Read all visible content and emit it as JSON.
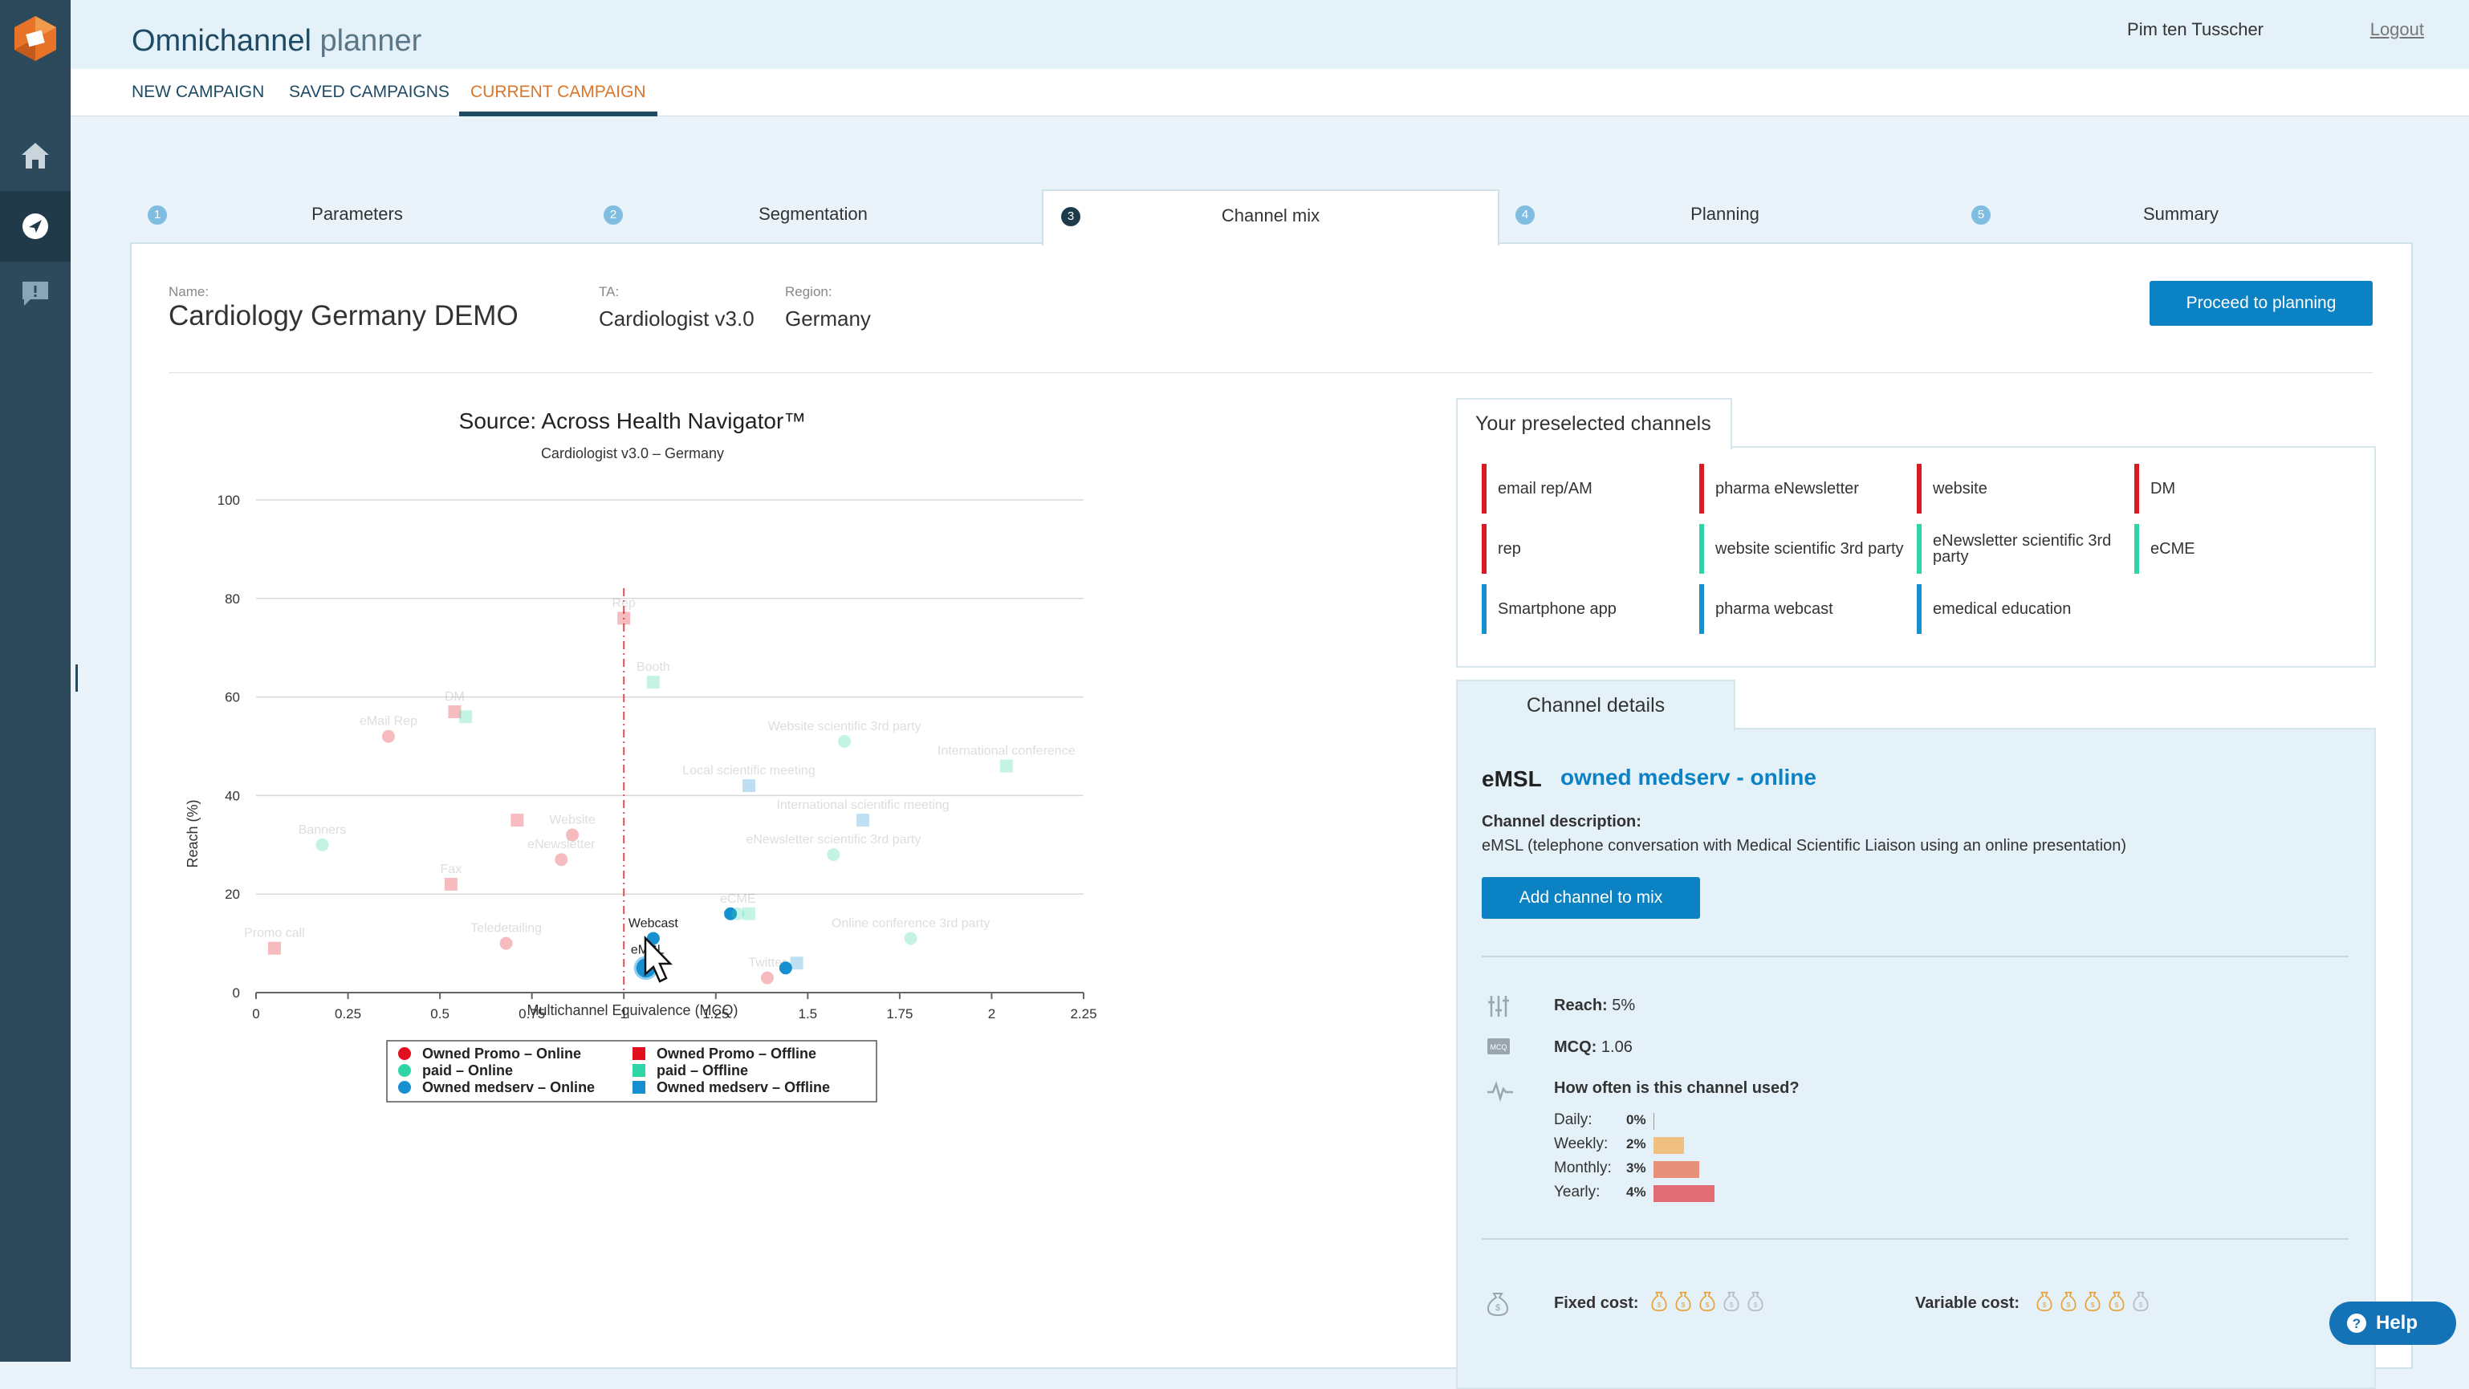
{
  "app": {
    "title_main": "Omnichannel",
    "title_thin": "planner"
  },
  "user": {
    "name": "Pim ten Tusscher",
    "logout": "Logout"
  },
  "nav": [
    {
      "label": "NEW CAMPAIGN",
      "active": false
    },
    {
      "label": "SAVED CAMPAIGNS",
      "active": false
    },
    {
      "label": "CURRENT CAMPAIGN",
      "active": true
    }
  ],
  "sidebar": {
    "items": [
      {
        "icon": "home-icon"
      },
      {
        "icon": "navigation-icon",
        "active": true
      },
      {
        "icon": "feedback-icon"
      }
    ]
  },
  "steps": [
    {
      "num": "1",
      "label": "Parameters"
    },
    {
      "num": "2",
      "label": "Segmentation"
    },
    {
      "num": "3",
      "label": "Channel mix",
      "active": true
    },
    {
      "num": "4",
      "label": "Planning"
    },
    {
      "num": "5",
      "label": "Summary"
    }
  ],
  "campaign": {
    "name_label": "Name:",
    "name": "Cardiology Germany DEMO",
    "ta_label": "TA:",
    "ta": "Cardiologist v3.0",
    "region_label": "Region:",
    "region": "Germany"
  },
  "proceed_label": "Proceed to planning",
  "chart_data": {
    "type": "scatter",
    "title": "Source: Across Health Navigator™",
    "subtitle": "Cardiologist v3.0 – Germany",
    "xlabel": "Multichannel Equivalence (MCQ)",
    "ylabel": "Reach (%)",
    "xlim": [
      0,
      2.25
    ],
    "ylim": [
      0,
      100
    ],
    "xticks": [
      "0",
      "0.25",
      "0.5",
      "0.75",
      "1",
      "1.25",
      "1.5",
      "1.75",
      "2",
      "2.25"
    ],
    "yticks": [
      "0",
      "20",
      "40",
      "60",
      "80",
      "100"
    ],
    "reference_line_x": 1,
    "colors": {
      "promo": "#e0101e",
      "paid": "#2ed6a6",
      "medserv": "#1790cf"
    },
    "legend": [
      {
        "label": "Owned Promo – Online",
        "group": "promo",
        "shape": "circle"
      },
      {
        "label": "Owned Promo – Offline",
        "group": "promo",
        "shape": "square"
      },
      {
        "label": "paid – Online",
        "group": "paid",
        "shape": "circle"
      },
      {
        "label": "paid – Offline",
        "group": "paid",
        "shape": "square"
      },
      {
        "label": "Owned medserv – Online",
        "group": "medserv",
        "shape": "circle"
      },
      {
        "label": "Owned medserv – Offline",
        "group": "medserv",
        "shape": "square"
      }
    ],
    "points": [
      {
        "x": 0.05,
        "y": 9,
        "group": "promo",
        "shape": "square",
        "label": "Promo call",
        "highlight": false
      },
      {
        "x": 0.18,
        "y": 30,
        "group": "paid",
        "shape": "circle",
        "label": "Banners",
        "highlight": false
      },
      {
        "x": 0.36,
        "y": 52,
        "group": "promo",
        "shape": "circle",
        "label": "eMail Rep",
        "highlight": false
      },
      {
        "x": 0.54,
        "y": 57,
        "group": "promo",
        "shape": "square",
        "label": "DM",
        "highlight": false
      },
      {
        "x": 0.57,
        "y": 56,
        "group": "paid",
        "shape": "square",
        "label": "",
        "highlight": false
      },
      {
        "x": 0.53,
        "y": 22,
        "group": "promo",
        "shape": "square",
        "label": "Fax",
        "highlight": false
      },
      {
        "x": 0.68,
        "y": 10,
        "group": "promo",
        "shape": "circle",
        "label": "Teledetailing",
        "highlight": false
      },
      {
        "x": 0.71,
        "y": 35,
        "group": "promo",
        "shape": "square",
        "label": "",
        "highlight": false
      },
      {
        "x": 0.86,
        "y": 32,
        "group": "promo",
        "shape": "circle",
        "label": "Website",
        "highlight": false
      },
      {
        "x": 0.83,
        "y": 27,
        "group": "promo",
        "shape": "circle",
        "label": "eNewsletter",
        "highlight": false
      },
      {
        "x": 1.0,
        "y": 76,
        "group": "promo",
        "shape": "square",
        "label": "Rep",
        "highlight": false
      },
      {
        "x": 1.08,
        "y": 63,
        "group": "paid",
        "shape": "square",
        "label": "Booth",
        "highlight": false
      },
      {
        "x": 1.08,
        "y": 11,
        "group": "medserv",
        "shape": "circle",
        "label": "Webcast",
        "highlight": true
      },
      {
        "x": 1.06,
        "y": 5,
        "group": "medserv",
        "shape": "circle",
        "label": "eMSL",
        "highlight": true,
        "selected": true
      },
      {
        "x": 1.29,
        "y": 16,
        "group": "medserv",
        "shape": "circle",
        "label": "",
        "highlight": true
      },
      {
        "x": 1.31,
        "y": 16,
        "group": "paid",
        "shape": "circle",
        "label": "eCME",
        "highlight": false
      },
      {
        "x": 1.34,
        "y": 16,
        "group": "paid",
        "shape": "square",
        "label": "",
        "highlight": false
      },
      {
        "x": 1.34,
        "y": 42,
        "group": "medserv",
        "shape": "square",
        "label": "Local scientific meeting",
        "highlight": false
      },
      {
        "x": 1.6,
        "y": 51,
        "group": "paid",
        "shape": "circle",
        "label": "Website scientific 3rd party",
        "highlight": false
      },
      {
        "x": 1.65,
        "y": 35,
        "group": "medserv",
        "shape": "square",
        "label": "International scientific meeting",
        "highlight": false
      },
      {
        "x": 1.57,
        "y": 28,
        "group": "paid",
        "shape": "circle",
        "label": "eNewsletter scientific 3rd party",
        "highlight": false
      },
      {
        "x": 2.04,
        "y": 46,
        "group": "paid",
        "shape": "square",
        "label": "International conference",
        "highlight": false
      },
      {
        "x": 1.78,
        "y": 11,
        "group": "paid",
        "shape": "circle",
        "label": "Online conference 3rd party",
        "highlight": false
      },
      {
        "x": 1.39,
        "y": 3,
        "group": "promo",
        "shape": "circle",
        "label": "Twitter",
        "highlight": false
      },
      {
        "x": 1.47,
        "y": 6,
        "group": "medserv",
        "shape": "square",
        "label": "",
        "highlight": false
      },
      {
        "x": 1.44,
        "y": 5,
        "group": "medserv",
        "shape": "circle",
        "label": "",
        "highlight": true
      }
    ]
  },
  "preselected": {
    "title": "Your preselected channels",
    "channels": [
      {
        "label": "email rep/AM",
        "color": "#d81a22"
      },
      {
        "label": "pharma eNewsletter",
        "color": "#d81a22"
      },
      {
        "label": "website",
        "color": "#d81a22"
      },
      {
        "label": "DM",
        "color": "#d81a22"
      },
      {
        "label": "rep",
        "color": "#d81a22"
      },
      {
        "label": "website scientific 3rd party",
        "color": "#2ed6a6"
      },
      {
        "label": "eNewsletter scientific 3rd party",
        "color": "#2ed6a6"
      },
      {
        "label": "eCME",
        "color": "#2ed6a6"
      },
      {
        "label": "Smartphone app",
        "color": "#1790cf"
      },
      {
        "label": "pharma webcast",
        "color": "#1790cf"
      },
      {
        "label": "emedical education",
        "color": "#1790cf"
      }
    ]
  },
  "details": {
    "title": "Channel details",
    "name": "eMSL",
    "type": "owned medserv - online",
    "desc_label": "Channel description:",
    "desc": "eMSL (telephone conversation with Medical Scientific Liaison using an online presentation)",
    "add_label": "Add channel to mix",
    "reach_label": "Reach:",
    "reach": "5%",
    "mcq_label": "MCQ:",
    "mcq": "1.06",
    "freq_title": "How often is this channel used?",
    "freq": [
      {
        "label": "Daily:",
        "pct": "0%",
        "value": 0,
        "color": "#f0c080"
      },
      {
        "label": "Weekly:",
        "pct": "2%",
        "value": 2,
        "color": "#f0c080"
      },
      {
        "label": "Monthly:",
        "pct": "3%",
        "value": 3,
        "color": "#e8907a"
      },
      {
        "label": "Yearly:",
        "pct": "4%",
        "value": 4,
        "color": "#e06c74"
      }
    ],
    "fixed_cost_label": "Fixed cost:",
    "fixed_cost": 3,
    "fixed_cost_max": 5,
    "variable_cost_label": "Variable cost:",
    "variable_cost": 4,
    "variable_cost_max": 5
  },
  "help_label": "Help"
}
